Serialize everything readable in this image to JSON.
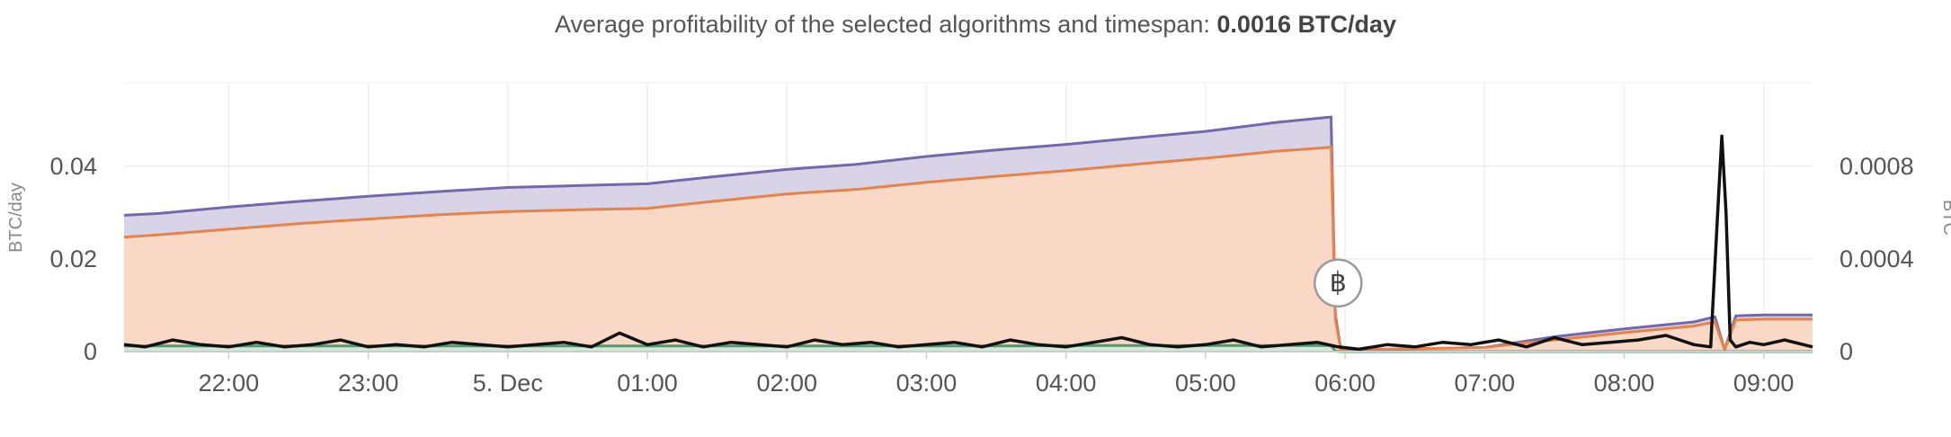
{
  "header": {
    "summary_label": "Average profitability of the selected algorithms and timespan:",
    "summary_value": "0.0016 BTC/day"
  },
  "chart_data": {
    "type": "area",
    "ylabel": "BTC/day",
    "ylabel_right": "BTC",
    "x_ticks": [
      "22:00",
      "23:00",
      "5. Dec",
      "01:00",
      "02:00",
      "03:00",
      "04:00",
      "05:00",
      "06:00",
      "07:00",
      "08:00",
      "09:00"
    ],
    "x_range_hours": [
      21.25,
      9.35
    ],
    "y_left": {
      "ticks": [
        "0",
        "0.02",
        "0.04"
      ],
      "ylim": [
        0,
        0.058
      ]
    },
    "y_right": {
      "ticks": [
        "0",
        "0.0004",
        "0.0008"
      ],
      "ylim": [
        0,
        0.00116
      ]
    },
    "x_hours": [
      21.25,
      21.5,
      22.0,
      22.5,
      23.0,
      23.5,
      24.0,
      24.5,
      25.0,
      25.5,
      26.0,
      26.5,
      27.0,
      27.5,
      28.0,
      28.5,
      29.0,
      29.5,
      29.9,
      29.93,
      29.97,
      30.0,
      30.5,
      31.0,
      31.5,
      32.0,
      32.5,
      32.65,
      32.72,
      32.8,
      33.0,
      33.35
    ],
    "series": [
      {
        "color": "#7468a8",
        "fill": "#d8d3e6",
        "values": [
          0.0294,
          0.0298,
          0.0312,
          0.0324,
          0.0335,
          0.0345,
          0.0354,
          0.0358,
          0.0362,
          0.0378,
          0.0393,
          0.0404,
          0.0421,
          0.0435,
          0.0447,
          0.0461,
          0.0475,
          0.0494,
          0.0506,
          0.008,
          0.0004,
          0.0004,
          0.0006,
          0.0009,
          0.0032,
          0.0049,
          0.0064,
          0.0075,
          0.0004,
          0.0077,
          0.0079,
          0.0079
        ]
      },
      {
        "color": "#e5834f",
        "fill": "#f9d9c5",
        "values": [
          0.0247,
          0.0252,
          0.0264,
          0.0276,
          0.0286,
          0.0295,
          0.0302,
          0.0306,
          0.0309,
          0.0325,
          0.034,
          0.035,
          0.0365,
          0.0378,
          0.039,
          0.0404,
          0.0417,
          0.0432,
          0.0441,
          0.007,
          0.0004,
          0.0004,
          0.0006,
          0.0009,
          0.0025,
          0.0041,
          0.0055,
          0.0064,
          0.0004,
          0.0068,
          0.007,
          0.007
        ]
      },
      {
        "color": "#4f9a6b",
        "fill": "#cfe8d7",
        "values": [
          0.0012,
          0.0012,
          0.0012,
          0.0012,
          0.0012,
          0.0012,
          0.0012,
          0.0012,
          0.0012,
          0.0012,
          0.0012,
          0.0012,
          0.0012,
          0.0012,
          0.0013,
          0.0013,
          0.0013,
          0.0013,
          0.0013,
          0.0001,
          0.0,
          0.0,
          0.0,
          0.0,
          0.0,
          0.0,
          0.0,
          0.0,
          0.0,
          0.0,
          0.0,
          0.0
        ]
      }
    ],
    "btc_line": {
      "color": "#111111",
      "axis": "right",
      "x_hours": [
        21.25,
        21.4,
        21.6,
        21.8,
        22.0,
        22.2,
        22.4,
        22.6,
        22.8,
        23.0,
        23.2,
        23.4,
        23.6,
        23.8,
        24.0,
        24.2,
        24.4,
        24.6,
        24.8,
        25.0,
        25.2,
        25.4,
        25.6,
        25.8,
        26.0,
        26.2,
        26.4,
        26.6,
        26.8,
        27.0,
        27.2,
        27.4,
        27.6,
        27.8,
        28.0,
        28.2,
        28.4,
        28.6,
        28.8,
        29.0,
        29.2,
        29.4,
        29.6,
        29.8,
        29.95,
        30.1,
        30.3,
        30.5,
        30.7,
        30.9,
        31.1,
        31.3,
        31.5,
        31.7,
        31.9,
        32.1,
        32.3,
        32.5,
        32.62,
        32.67,
        32.7,
        32.73,
        32.76,
        32.8,
        32.9,
        33.0,
        33.15,
        33.35
      ],
      "values": [
        3e-05,
        2e-05,
        5e-05,
        3e-05,
        2e-05,
        4e-05,
        2e-05,
        3e-05,
        5e-05,
        2e-05,
        3e-05,
        2e-05,
        4e-05,
        3e-05,
        2e-05,
        3e-05,
        4e-05,
        2e-05,
        8e-05,
        3e-05,
        5e-05,
        2e-05,
        4e-05,
        3e-05,
        2e-05,
        5e-05,
        3e-05,
        4e-05,
        2e-05,
        3e-05,
        4e-05,
        2e-05,
        5e-05,
        3e-05,
        2e-05,
        4e-05,
        6e-05,
        3e-05,
        2e-05,
        3e-05,
        5e-05,
        2e-05,
        3e-05,
        4e-05,
        2e-05,
        1e-05,
        3e-05,
        2e-05,
        4e-05,
        3e-05,
        5e-05,
        2e-05,
        6e-05,
        3e-05,
        4e-05,
        5e-05,
        7e-05,
        3e-05,
        2e-05,
        0.0006,
        0.00093,
        0.0006,
        5e-05,
        2e-05,
        4e-05,
        3e-05,
        5e-05,
        2e-05
      ]
    },
    "marker": {
      "label": "฿",
      "x_hours": 29.95,
      "y_left": 0.0148
    },
    "grid": true
  }
}
